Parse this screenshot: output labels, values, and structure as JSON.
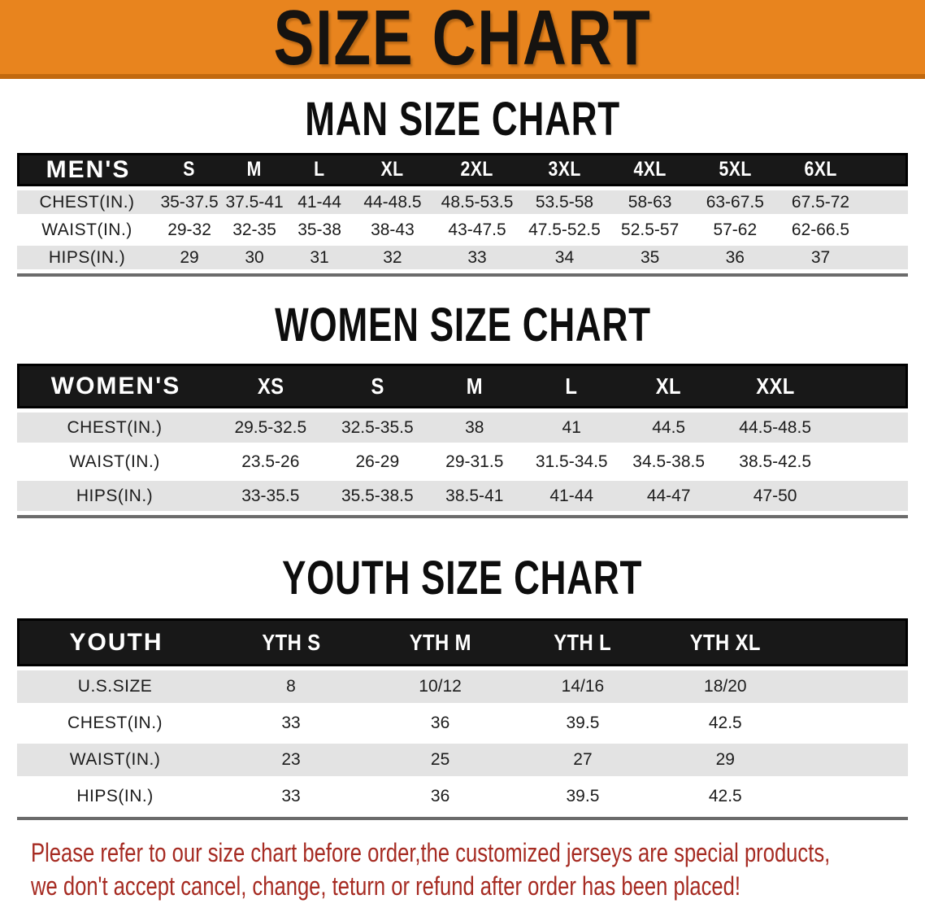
{
  "banner": {
    "title": "SIZE CHART"
  },
  "sections": [
    {
      "heading": "MAN SIZE CHART",
      "label": "MEN'S",
      "columns": [
        "S",
        "M",
        "L",
        "XL",
        "2XL",
        "3XL",
        "4XL",
        "5XL",
        "6XL"
      ],
      "rows": [
        {
          "label": "CHEST(IN.)",
          "values": [
            "35-37.5",
            "37.5-41",
            "41-44",
            "44-48.5",
            "48.5-53.5",
            "53.5-58",
            "58-63",
            "63-67.5",
            "67.5-72"
          ]
        },
        {
          "label": "WAIST(IN.)",
          "values": [
            "29-32",
            "32-35",
            "35-38",
            "38-43",
            "43-47.5",
            "47.5-52.5",
            "52.5-57",
            "57-62",
            "62-66.5"
          ]
        },
        {
          "label": "HIPS(IN.)",
          "values": [
            "29",
            "30",
            "31",
            "32",
            "33",
            "34",
            "35",
            "36",
            "37"
          ]
        }
      ]
    },
    {
      "heading": "WOMEN SIZE CHART",
      "label": "WOMEN'S",
      "columns": [
        "XS",
        "S",
        "M",
        "L",
        "XL",
        "XXL"
      ],
      "rows": [
        {
          "label": "CHEST(IN.)",
          "values": [
            "29.5-32.5",
            "32.5-35.5",
            "38",
            "41",
            "44.5",
            "44.5-48.5"
          ]
        },
        {
          "label": "WAIST(IN.)",
          "values": [
            "23.5-26",
            "26-29",
            "29-31.5",
            "31.5-34.5",
            "34.5-38.5",
            "38.5-42.5"
          ]
        },
        {
          "label": "HIPS(IN.)",
          "values": [
            "33-35.5",
            "35.5-38.5",
            "38.5-41",
            "41-44",
            "44-47",
            "47-50"
          ]
        }
      ]
    },
    {
      "heading": "YOUTH SIZE CHART",
      "label": "YOUTH",
      "columns": [
        "YTH S",
        "YTH M",
        "YTH L",
        "YTH XL"
      ],
      "rows": [
        {
          "label": "U.S.SIZE",
          "values": [
            "8",
            "10/12",
            "14/16",
            "18/20"
          ]
        },
        {
          "label": "CHEST(IN.)",
          "values": [
            "33",
            "36",
            "39.5",
            "42.5"
          ]
        },
        {
          "label": "WAIST(IN.)",
          "values": [
            "23",
            "25",
            "27",
            "29"
          ]
        },
        {
          "label": "HIPS(IN.)",
          "values": [
            "33",
            "36",
            "39.5",
            "42.5"
          ]
        }
      ]
    }
  ],
  "footer": {
    "line1": "Please refer to our size chart before order,the customized jerseys are special products,",
    "line2": "we don't accept cancel, change, teturn or refund after order has been placed!"
  },
  "colors": {
    "banner_orange": "#E8841E",
    "banner_border": "#C2690F",
    "header_black": "#181818",
    "stripe_gray": "#e3e3e3",
    "note_red": "#A62B22"
  }
}
